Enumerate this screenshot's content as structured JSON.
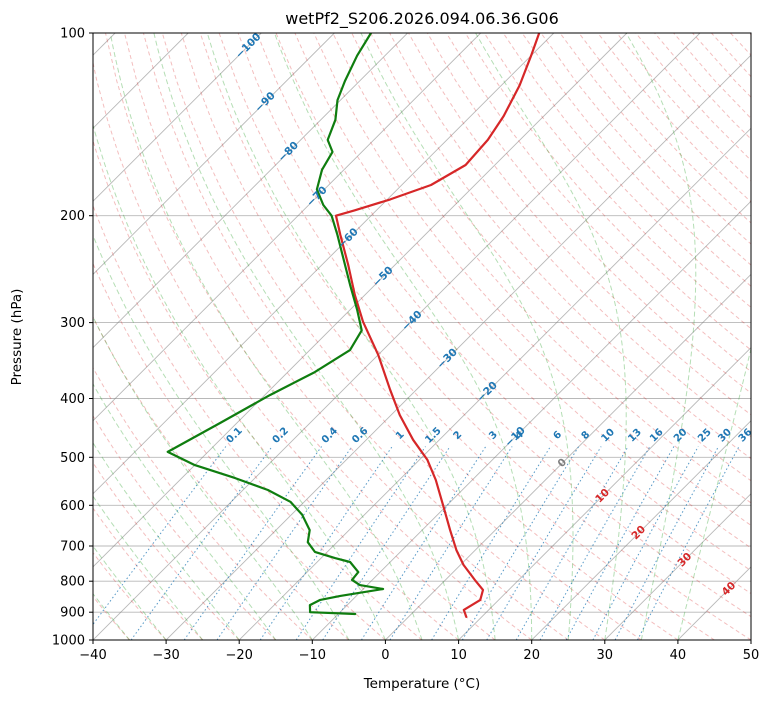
{
  "chart_data": {
    "type": "skewt",
    "title": "wetPf2_S206.2026.094.06.36.G06",
    "xlabel": "Temperature (°C)",
    "ylabel": "Pressure (hPa)",
    "xlim": [
      -40,
      50
    ],
    "plim": [
      100,
      1000
    ],
    "x_ticks": [
      -40,
      -30,
      -20,
      -10,
      0,
      10,
      20,
      30,
      40,
      50
    ],
    "p_ticks": [
      100,
      200,
      300,
      400,
      500,
      600,
      700,
      800,
      900,
      1000
    ],
    "grid": true,
    "grid_color": "rgba(125,125,125,0.55)",
    "isotherms": {
      "start": -160,
      "end": 50,
      "step": 10,
      "color": "rgba(125,125,125,0.55)"
    },
    "isotherm_labels": [
      {
        "t": -100,
        "p": 105,
        "color": "#1f77b4"
      },
      {
        "t": -90,
        "p": 130,
        "color": "#1f77b4"
      },
      {
        "t": -80,
        "p": 157,
        "color": "#1f77b4"
      },
      {
        "t": -70,
        "p": 186,
        "color": "#1f77b4"
      },
      {
        "t": -60,
        "p": 218,
        "color": "#1f77b4"
      },
      {
        "t": -50,
        "p": 252,
        "color": "#1f77b4"
      },
      {
        "t": -40,
        "p": 298,
        "color": "#1f77b4"
      },
      {
        "t": -30,
        "p": 344,
        "color": "#1f77b4"
      },
      {
        "t": -20,
        "p": 390,
        "color": "#1f77b4"
      },
      {
        "t": -10,
        "p": 463,
        "color": "#1f77b4"
      },
      {
        "t": 0,
        "p": 511,
        "color": "#808080"
      },
      {
        "t": 10,
        "p": 579,
        "color": "#d62728"
      },
      {
        "t": 20,
        "p": 666,
        "color": "#d62728"
      },
      {
        "t": 30,
        "p": 738,
        "color": "#d62728"
      },
      {
        "t": 40,
        "p": 824,
        "color": "#d62728"
      }
    ],
    "dry_adiabats": {
      "start": -40,
      "end": 200,
      "step": 5,
      "color": "rgba(214,39,40,0.30)"
    },
    "moist_adiabats": {
      "start": -40,
      "end": 40,
      "step": 5,
      "color": "rgba(44,160,44,0.35)"
    },
    "mixing_ratio": {
      "values": [
        0.1,
        0.2,
        0.4,
        0.6,
        1,
        1.5,
        2,
        3,
        4,
        6,
        8,
        10,
        13,
        16,
        20,
        25,
        30,
        36
      ],
      "top_p": 480,
      "label_p": 460,
      "color": "rgba(31,119,180,0.75)",
      "label_color": "#1f77b4"
    },
    "temperature_trace": {
      "name": "temperature",
      "color": "#d62728",
      "points_pT": [
        [
          100,
          -62
        ],
        [
          109,
          -60
        ],
        [
          122,
          -57.5
        ],
        [
          137,
          -55.5
        ],
        [
          150,
          -54.4
        ],
        [
          165,
          -54
        ],
        [
          178,
          -56
        ],
        [
          188,
          -59.6
        ],
        [
          196,
          -63
        ],
        [
          200,
          -64.8
        ],
        [
          215,
          -61.6
        ],
        [
          241,
          -56.4
        ],
        [
          270,
          -51.4
        ],
        [
          299,
          -46.6
        ],
        [
          339,
          -40
        ],
        [
          387,
          -33.6
        ],
        [
          426,
          -28.8
        ],
        [
          468,
          -23.6
        ],
        [
          505,
          -18.9
        ],
        [
          545,
          -15
        ],
        [
          599,
          -10.6
        ],
        [
          659,
          -6.2
        ],
        [
          711,
          -2.6
        ],
        [
          752,
          0.4
        ],
        [
          796,
          4
        ],
        [
          827,
          6.5
        ],
        [
          859,
          7.5
        ],
        [
          892,
          6.6
        ],
        [
          916,
          7.9
        ]
      ]
    },
    "dewpoint_trace": {
      "name": "dewpoint",
      "color": "#0f7d0f",
      "points_pT": [
        [
          100,
          -85
        ],
        [
          109,
          -83.8
        ],
        [
          120,
          -82
        ],
        [
          129,
          -80.4
        ],
        [
          139,
          -78
        ],
        [
          150,
          -76.3
        ],
        [
          157,
          -74
        ],
        [
          168,
          -73
        ],
        [
          181,
          -71
        ],
        [
          192,
          -68
        ],
        [
          200,
          -65.4
        ],
        [
          215,
          -62
        ],
        [
          237,
          -57.6
        ],
        [
          260,
          -53.4
        ],
        [
          286,
          -49
        ],
        [
          309,
          -45.6
        ],
        [
          333,
          -44.5
        ],
        [
          362,
          -46.3
        ],
        [
          395,
          -49.3
        ],
        [
          439,
          -52.3
        ],
        [
          490,
          -55.5
        ],
        [
          515,
          -50
        ],
        [
          541,
          -42.7
        ],
        [
          566,
          -36.6
        ],
        [
          592,
          -31.9
        ],
        [
          622,
          -28.5
        ],
        [
          659,
          -25.4
        ],
        [
          690,
          -24
        ],
        [
          716,
          -21.7
        ],
        [
          733,
          -18.1
        ],
        [
          744,
          -15.5
        ],
        [
          773,
          -13
        ],
        [
          796,
          -12.8
        ],
        [
          812,
          -11
        ],
        [
          824,
          -7.3
        ],
        [
          846,
          -12.2
        ],
        [
          859,
          -14.4
        ],
        [
          876,
          -15.1
        ],
        [
          900,
          -14.1
        ],
        [
          906,
          -7.7
        ]
      ]
    }
  }
}
